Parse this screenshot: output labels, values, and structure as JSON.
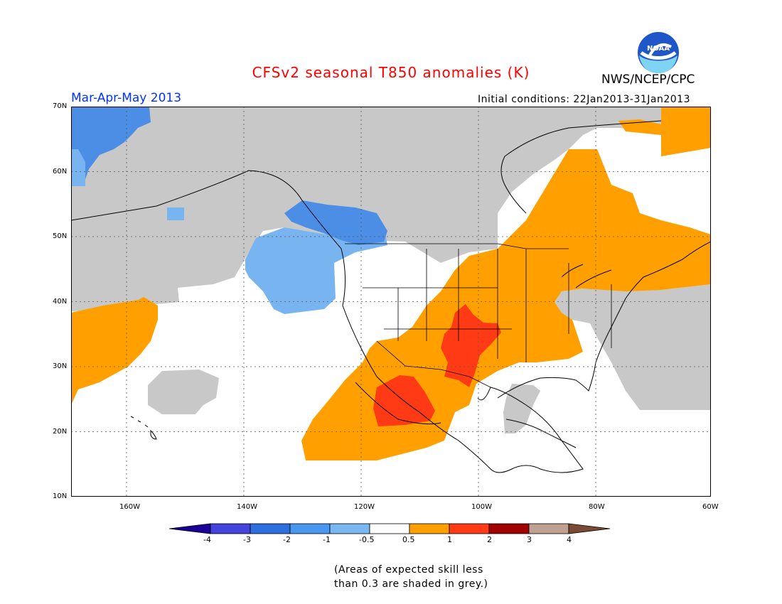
{
  "title": "CFSv2 seasonal T850 anomalies (K)",
  "agency": "NWS/NCEP/CPC",
  "logo_text": "NOAA",
  "period": "Mar-Apr-May 2013",
  "initial_conditions": "Initial conditions: 22Jan2013-31Jan2013",
  "lat_labels": [
    "70N",
    "60N",
    "50N",
    "40N",
    "30N",
    "20N",
    "10N"
  ],
  "lon_labels": [
    "160W",
    "140W",
    "120W",
    "100W",
    "80W",
    "60W"
  ],
  "colorbar": {
    "labels": [
      "-4",
      "-3",
      "-2",
      "-1",
      "-0.5",
      "0.5",
      "1",
      "2",
      "3",
      "4"
    ],
    "colors": [
      "#1a0099",
      "#4444dd",
      "#2e6fe0",
      "#4a97f2",
      "#7ab8f2",
      "#ffffff",
      "#ffa000",
      "#ff3a14",
      "#a00000",
      "#c0a090",
      "#7a4a35"
    ]
  },
  "colors": {
    "grey_low_skill": "#c8c8c8",
    "blue_dark": "#4c8ee6",
    "blue_light": "#78b4ef",
    "orange": "#ffa000",
    "red": "#ff3a14"
  },
  "note_line1": "(Areas of expected skill less",
  "note_line2": "than 0.3 are shaded in grey.)"
}
